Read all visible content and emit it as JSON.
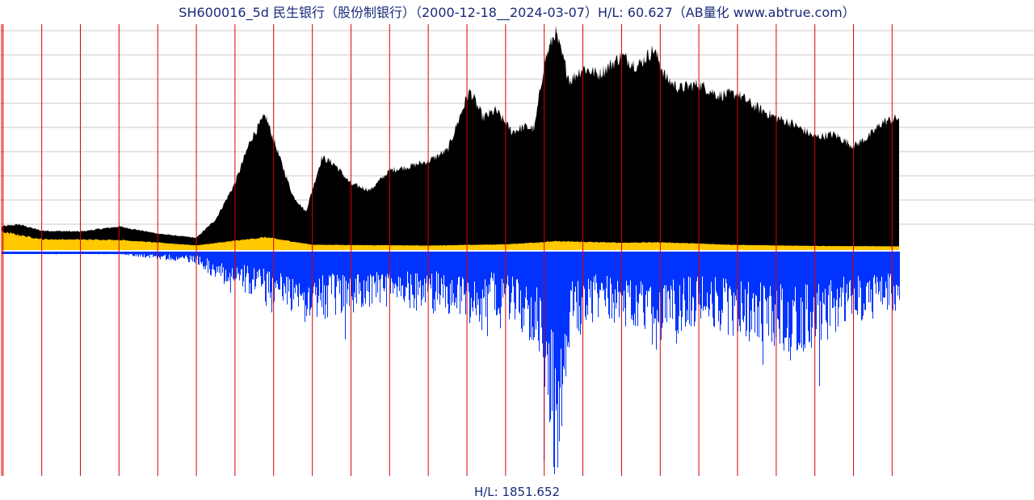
{
  "chart_data": {
    "type": "area",
    "title": "SH600016_5d 民生银行（股份制银行）（2000-12-18__2024-03-07）H/L: 60.627（AB量化  www.abtrue.com）",
    "footer": "H/L: 1851.652",
    "x_range": [
      "2000-12-18",
      "2024-03-07"
    ],
    "upper_panel": {
      "series": [
        {
          "role": "price",
          "color": "#000000",
          "x": [
            "2000-12-18",
            "2001-06-01",
            "2002-01-01",
            "2003-01-01",
            "2004-01-01",
            "2005-01-01",
            "2006-01-01",
            "2006-07-01",
            "2007-01-01",
            "2007-06-01",
            "2007-10-15",
            "2008-03-01",
            "2008-07-01",
            "2008-11-01",
            "2009-04-01",
            "2009-08-01",
            "2010-01-01",
            "2010-07-01",
            "2011-01-01",
            "2011-07-01",
            "2012-01-01",
            "2012-07-01",
            "2013-01-01",
            "2013-02-01",
            "2013-06-01",
            "2013-10-01",
            "2014-03-01",
            "2014-07-01",
            "2014-10-01",
            "2015-01-01",
            "2015-04-15",
            "2015-06-01",
            "2015-09-01",
            "2016-01-01",
            "2016-06-01",
            "2017-01-01",
            "2017-06-01",
            "2017-11-01",
            "2018-03-01",
            "2018-07-01",
            "2019-01-01",
            "2019-07-01",
            "2020-01-01",
            "2020-06-01",
            "2021-01-01",
            "2021-06-01",
            "2022-01-01",
            "2022-07-01",
            "2023-01-01",
            "2023-06-01",
            "2023-10-01",
            "2024-03-07"
          ],
          "values": [
            1.08,
            1.18,
            0.87,
            0.83,
            1.08,
            0.73,
            0.52,
            1.42,
            3.21,
            5.4,
            6.55,
            4.43,
            2.6,
            1.8,
            4.49,
            4.14,
            3.17,
            2.87,
            3.84,
            4.03,
            4.3,
            4.83,
            7.46,
            7.76,
            6.44,
            6.8,
            5.75,
            5.99,
            5.9,
            9.16,
            10.68,
            9.8,
            8.26,
            8.9,
            8.58,
            9.49,
            8.99,
            9.81,
            8.36,
            7.9,
            8.1,
            7.55,
            7.61,
            7.03,
            6.44,
            6.15,
            5.49,
            5.62,
            5.03,
            5.54,
            6.22,
            6.44
          ]
        },
        {
          "role": "band",
          "color": "#ffc800",
          "x": [
            "2000-12-18",
            "2002-01-01",
            "2004-01-01",
            "2006-01-01",
            "2007-10-15",
            "2009-01-01",
            "2012-01-01",
            "2014-01-01",
            "2015-04-15",
            "2017-01-01",
            "2018-01-01",
            "2020-01-01",
            "2022-01-01",
            "2024-03-07"
          ],
          "values": [
            0.82,
            0.45,
            0.42,
            0.15,
            0.55,
            0.18,
            0.14,
            0.2,
            0.35,
            0.28,
            0.3,
            0.17,
            0.12,
            0.1
          ]
        }
      ]
    },
    "lower_panel": {
      "series": [
        {
          "role": "volume",
          "color": "#0033ff",
          "x": [
            "2000-12-18",
            "2002-01-01",
            "2004-01-01",
            "2005-01-01",
            "2006-01-01",
            "2006-07-01",
            "2007-06-01",
            "2008-01-01",
            "2009-04-01",
            "2009-08-01",
            "2010-07-01",
            "2012-01-01",
            "2013-01-01",
            "2014-01-01",
            "2014-11-01",
            "2015-04-15",
            "2015-09-01",
            "2016-06-01",
            "2017-01-01",
            "2017-11-01",
            "2018-07-01",
            "2019-01-01",
            "2020-01-01",
            "2020-12-01",
            "2021-06-01",
            "2022-01-01",
            "2023-01-01",
            "2024-03-07"
          ],
          "values": [
            14,
            15,
            22,
            60,
            90,
            220,
            340,
            420,
            540,
            520,
            430,
            460,
            520,
            480,
            780,
            1851,
            690,
            520,
            570,
            780,
            620,
            560,
            680,
            720,
            850,
            730,
            560,
            480
          ]
        }
      ]
    }
  }
}
